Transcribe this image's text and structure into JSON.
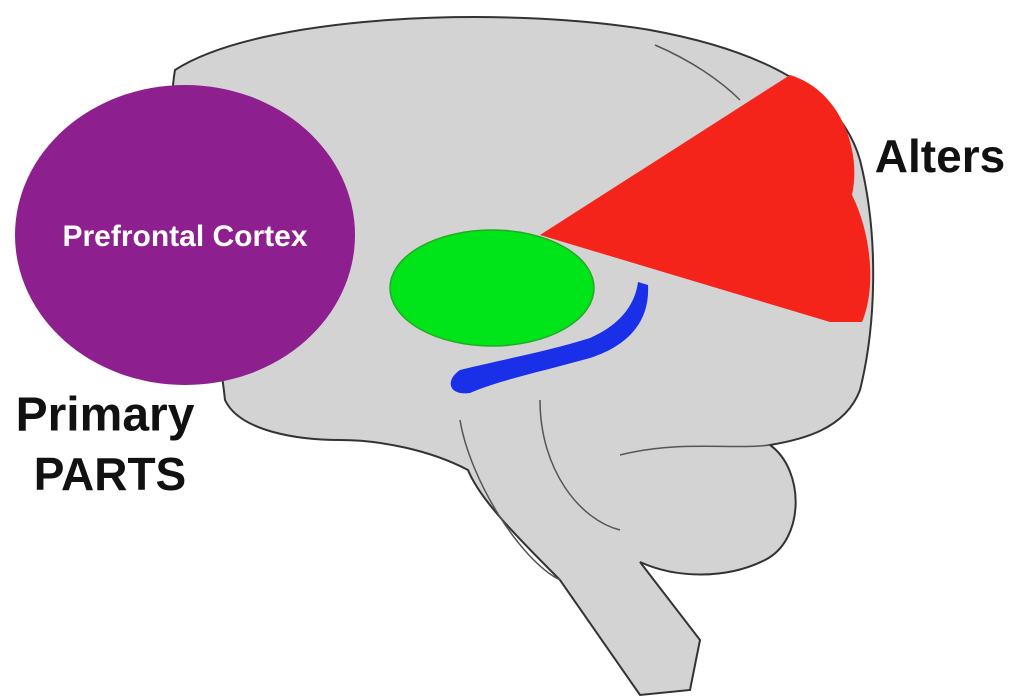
{
  "labels": {
    "prefrontal": "Prefrontal Cortex",
    "alters": "Alters",
    "primary": "Primary",
    "parts": "PARTS"
  }
}
